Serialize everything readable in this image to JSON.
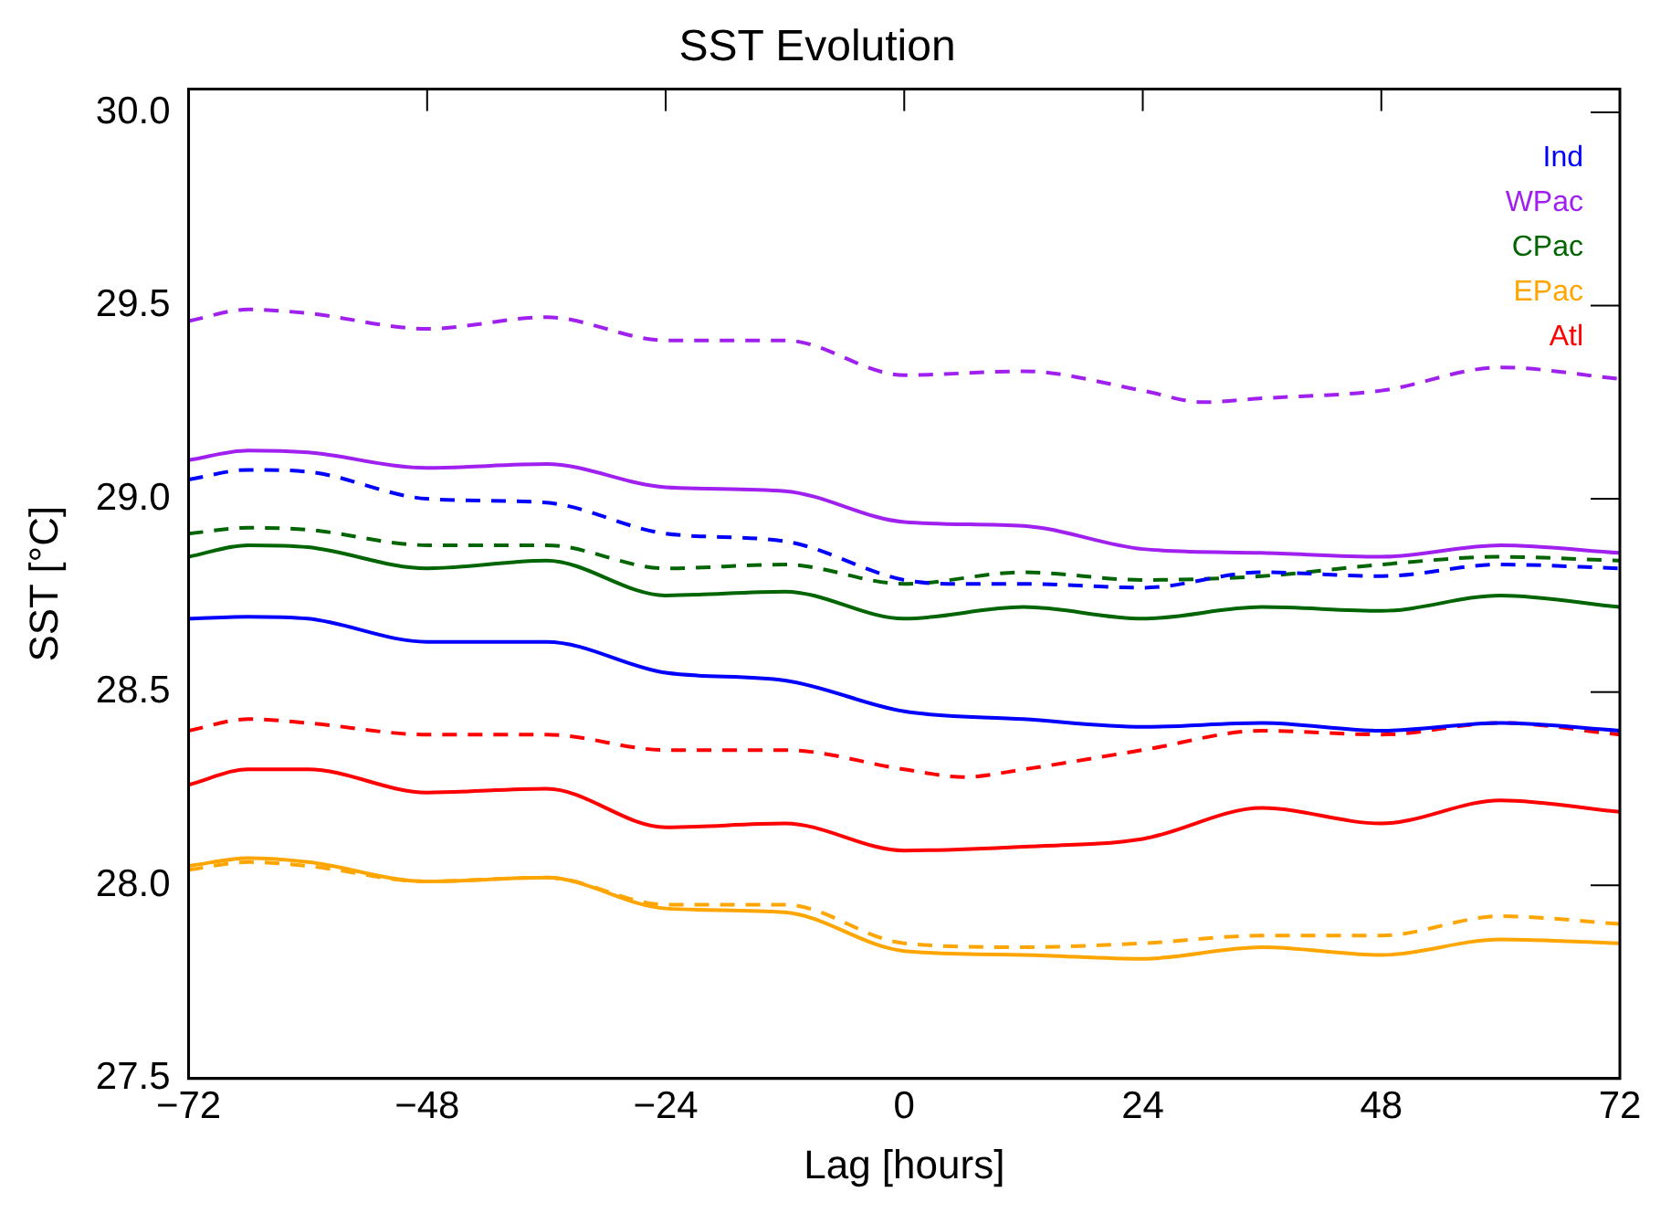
{
  "chart_data": {
    "type": "line",
    "title": "SST Evolution",
    "xlabel": "Lag [hours]",
    "ylabel": "SST [°C]",
    "xlim": [
      -72,
      72
    ],
    "xticks": [
      -72,
      -48,
      -24,
      0,
      24,
      48,
      72
    ],
    "ylim": [
      27.5,
      30.06
    ],
    "yticks": [
      27.5,
      {
        "value": 28,
        "label": "28.0"
      },
      28.5,
      {
        "value": 29,
        "label": "29.0"
      },
      29.5,
      {
        "value": 30,
        "label": "30.0"
      }
    ],
    "grid": false,
    "legend": "top right",
    "marker": "none",
    "series": [
      {
        "name": "Ind",
        "color": "#0000ff",
        "line_style": "solid",
        "x": [
          -72,
          -66,
          -60,
          -48,
          -36,
          -24,
          -12,
          0,
          12,
          24,
          36,
          48,
          60,
          72
        ],
        "values": [
          28.69,
          28.695,
          28.69,
          28.63,
          28.63,
          28.55,
          28.53,
          28.45,
          28.43,
          28.41,
          28.42,
          28.4,
          28.42,
          28.4
        ]
      },
      {
        "name": "WPac",
        "color": "#a020f0",
        "line_style": "solid",
        "x": [
          -72,
          -66,
          -60,
          -48,
          -36,
          -24,
          -12,
          0,
          12,
          24,
          36,
          48,
          60,
          72
        ],
        "values": [
          29.1,
          29.125,
          29.12,
          29.08,
          29.09,
          29.03,
          29.02,
          28.94,
          28.93,
          28.87,
          28.86,
          28.85,
          28.88,
          28.86
        ]
      },
      {
        "name": "CPac",
        "color": "#006400",
        "line_style": "solid",
        "x": [
          -72,
          -66,
          -60,
          -48,
          -36,
          -24,
          -12,
          0,
          12,
          24,
          36,
          48,
          60,
          72
        ],
        "values": [
          28.85,
          28.88,
          28.875,
          28.82,
          28.84,
          28.75,
          28.76,
          28.69,
          28.72,
          28.69,
          28.72,
          28.71,
          28.75,
          28.72
        ]
      },
      {
        "name": "EPac",
        "color": "#ffa500",
        "line_style": "solid",
        "x": [
          -72,
          -66,
          -60,
          -48,
          -36,
          -24,
          -12,
          0,
          12,
          24,
          36,
          48,
          60,
          72
        ],
        "values": [
          28.05,
          28.07,
          28.06,
          28.01,
          28.02,
          27.94,
          27.93,
          27.83,
          27.82,
          27.81,
          27.84,
          27.82,
          27.86,
          27.85
        ]
      },
      {
        "name": "Atl",
        "color": "#ff0000",
        "line_style": "solid",
        "x": [
          -72,
          -66,
          -60,
          -48,
          -36,
          -24,
          -12,
          0,
          12,
          24,
          36,
          48,
          60,
          72
        ],
        "values": [
          28.26,
          28.3,
          28.3,
          28.24,
          28.25,
          28.15,
          28.16,
          28.09,
          28.1,
          28.12,
          28.2,
          28.16,
          28.22,
          28.19
        ]
      },
      {
        "color": "#0000ff",
        "line_style": "dashed",
        "x": [
          -72,
          -66,
          -60,
          -48,
          -36,
          -24,
          -12,
          0,
          6,
          12,
          24,
          36,
          48,
          60,
          72
        ],
        "values": [
          29.05,
          29.075,
          29.07,
          29.0,
          28.99,
          28.91,
          28.89,
          28.79,
          28.78,
          28.78,
          28.77,
          28.81,
          28.8,
          28.83,
          28.82
        ]
      },
      {
        "color": "#a020f0",
        "line_style": "dashed",
        "x": [
          -72,
          -66,
          -60,
          -48,
          -36,
          -24,
          -12,
          0,
          12,
          24,
          30,
          36,
          48,
          60,
          72
        ],
        "values": [
          29.46,
          29.49,
          29.48,
          29.44,
          29.47,
          29.41,
          29.41,
          29.32,
          29.33,
          29.28,
          29.25,
          29.26,
          29.28,
          29.34,
          29.31
        ]
      },
      {
        "color": "#006400",
        "line_style": "dashed",
        "x": [
          -72,
          -66,
          -60,
          -48,
          -36,
          -24,
          -12,
          0,
          12,
          24,
          36,
          48,
          60,
          72
        ],
        "values": [
          28.91,
          28.925,
          28.92,
          28.88,
          28.88,
          28.82,
          28.83,
          28.78,
          28.81,
          28.79,
          28.8,
          28.83,
          28.85,
          28.84
        ]
      },
      {
        "color": "#ffa500",
        "line_style": "dashed",
        "x": [
          -72,
          -66,
          -60,
          -48,
          -36,
          -24,
          -12,
          0,
          12,
          24,
          36,
          48,
          60,
          72
        ],
        "values": [
          28.04,
          28.06,
          28.05,
          28.01,
          28.02,
          27.95,
          27.95,
          27.85,
          27.84,
          27.85,
          27.87,
          27.87,
          27.92,
          27.9
        ]
      },
      {
        "color": "#ff0000",
        "line_style": "dashed",
        "x": [
          -72,
          -66,
          -60,
          -48,
          -36,
          -24,
          -12,
          0,
          6,
          12,
          24,
          36,
          48,
          60,
          72
        ],
        "values": [
          28.4,
          28.43,
          28.42,
          28.39,
          28.39,
          28.35,
          28.35,
          28.3,
          28.28,
          28.3,
          28.35,
          28.4,
          28.39,
          28.42,
          28.39
        ]
      }
    ]
  }
}
